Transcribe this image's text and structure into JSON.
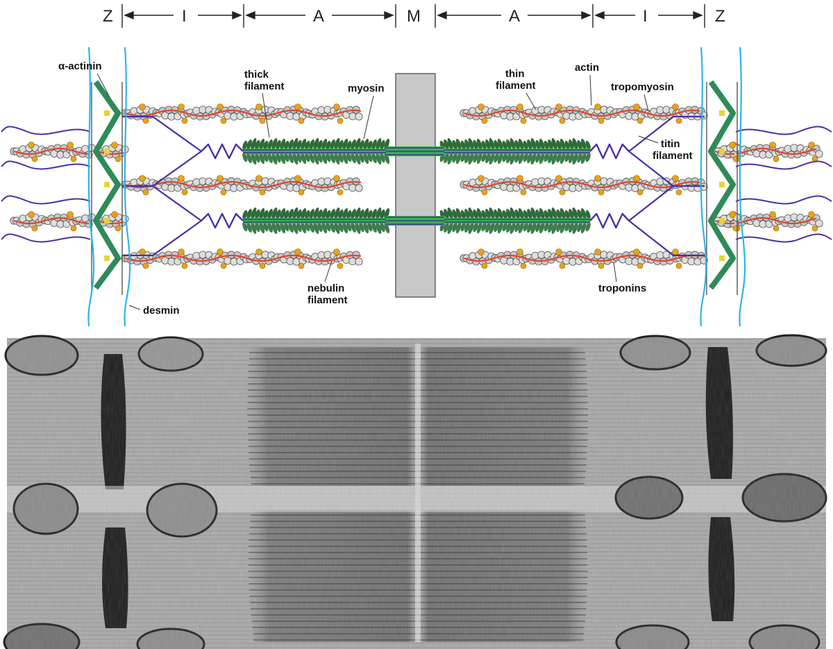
{
  "bands": {
    "z_left": "Z",
    "i_left": "I",
    "a_left": "A",
    "m": "M",
    "a_right": "A",
    "i_right": "I",
    "z_right": "Z"
  },
  "labels": {
    "alpha_actinin": "α-actinin",
    "thick_filament_1": "thick",
    "thick_filament_2": "filament",
    "myosin": "myosin",
    "thin_filament_1": "thin",
    "thin_filament_2": "filament",
    "actin": "actin",
    "tropomyosin": "tropomyosin",
    "titin_filament_1": "titin",
    "titin_filament_2": "filament",
    "nebulin_filament_1": "nebulin",
    "nebulin_filament_2": "filament",
    "troponins": "troponins",
    "desmin": "desmin"
  },
  "colors": {
    "actin_bead": "#c9c9c9",
    "tropomyosin": "#e0452a",
    "troponin": "#e8a21e",
    "myosin_head": "#2f6b3a",
    "thick_core": "#35b24a",
    "titin": "#4a2ea6",
    "desmin": "#29b6e8",
    "alpha_actinin": "#2e8b57",
    "m_line": "#c8c8c8"
  }
}
